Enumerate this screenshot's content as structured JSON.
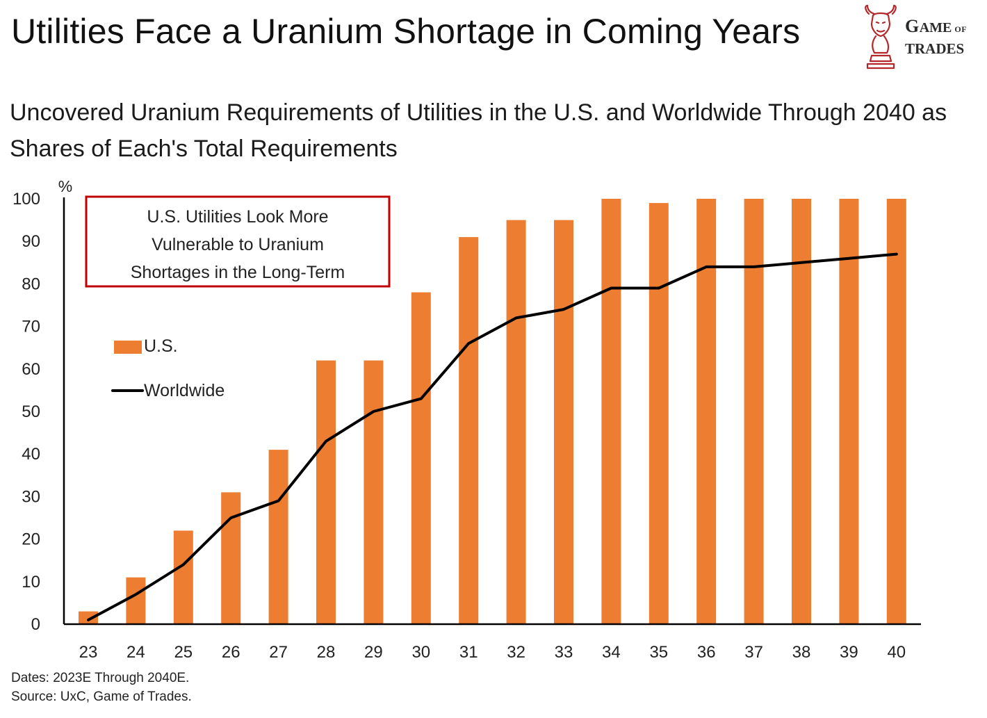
{
  "header": {
    "title": "Utilities Face a Uranium Shortage in Coming Years",
    "subtitle": "Uncovered Uranium Requirements of Utilities in the U.S. and Worldwide Through 2040 as Shares of Each's Total Requirements"
  },
  "logo": {
    "line1_big1": "G",
    "line1_rest": "AME",
    "line1_of": "OF",
    "line2": "TRADES",
    "icon": "bull-chess-knight-icon",
    "color": "#b3262a"
  },
  "chart_data": {
    "type": "bar",
    "title": "Uncovered Uranium Requirements of Utilities in the U.S. and Worldwide Through 2040 as Shares of Each's Total Requirements",
    "ylabel": "%",
    "xlabel": "",
    "ylim": [
      0,
      100
    ],
    "yticks": [
      0,
      10,
      20,
      30,
      40,
      50,
      60,
      70,
      80,
      90,
      100
    ],
    "categories": [
      "23",
      "24",
      "25",
      "26",
      "27",
      "28",
      "29",
      "30",
      "31",
      "32",
      "33",
      "34",
      "35",
      "36",
      "37",
      "38",
      "39",
      "40"
    ],
    "series": [
      {
        "name": "U.S.",
        "kind": "bar",
        "color": "#ed7d31",
        "values": [
          3,
          11,
          22,
          31,
          41,
          62,
          62,
          78,
          91,
          95,
          95,
          100,
          99,
          100,
          100,
          100,
          100,
          100
        ]
      },
      {
        "name": "Worldwide",
        "kind": "line",
        "color": "#000000",
        "values": [
          1,
          7,
          14,
          25,
          29,
          43,
          50,
          53,
          66,
          72,
          74,
          79,
          79,
          84,
          84,
          85,
          86,
          87
        ]
      }
    ],
    "legend": {
      "position": "left-middle"
    },
    "annotation": {
      "lines": [
        "U.S. Utilities  Look More",
        "Vulnerable to Uranium",
        "Shortages in the Long-Term"
      ],
      "border_color": "#c00000"
    },
    "grid": false
  },
  "footer": {
    "dates": "Dates: 2023E Through 2040E.",
    "source": "Source: UxC, Game of Trades."
  }
}
